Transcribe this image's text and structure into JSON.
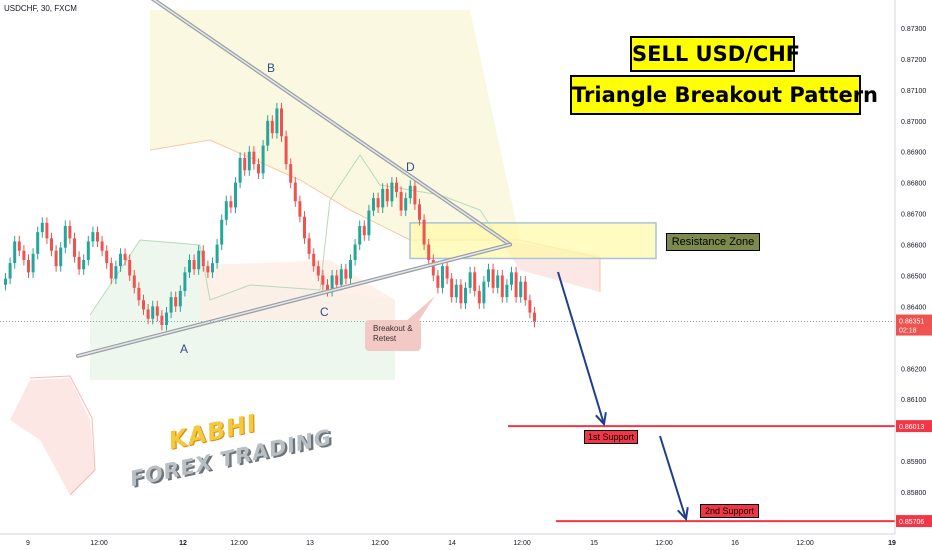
{
  "symbol_label": "USDCHF, 30, FXCM",
  "headline": {
    "line1": "SELL USD/CHF",
    "line2": "Triangle Breakout Pattern"
  },
  "resistance_zone_label": "Resistance Zone",
  "callout": {
    "line1": "Breakout &",
    "line2": "Retest"
  },
  "point_labels": {
    "a": "A",
    "b": "B",
    "c": "C",
    "d": "D"
  },
  "supports": [
    {
      "label": "1st Support",
      "price": 0.86013
    },
    {
      "label": "2nd Support",
      "price": 0.85706
    }
  ],
  "watermark": {
    "line1": "KABHI",
    "line2": "FOREX TRADING"
  },
  "colors": {
    "up": "#26a69a",
    "down": "#ef5350",
    "support": "#f23645",
    "arrow": "#1f3f8c",
    "title_bg": "#ffff00"
  },
  "chart_data": {
    "type": "candlestick",
    "title": "SELL USD/CHF — Triangle Breakout Pattern",
    "symbol": "USDCHF",
    "timeframe": "30",
    "source": "FXCM",
    "ylim": [
      0.8566,
      0.8738
    ],
    "x_tick_labels": [
      "9",
      "12:00",
      "12",
      "12:00",
      "13",
      "12:00",
      "14",
      "12:00",
      "15",
      "12:00",
      "16",
      "12:00",
      "19"
    ],
    "y_tick_labels": [
      "0.87300",
      "0.87200",
      "0.87100",
      "0.87000",
      "0.86900",
      "0.86800",
      "0.86700",
      "0.86600",
      "0.86500",
      "0.86400",
      "0.86200",
      "0.86100",
      "0.85900",
      "0.85800"
    ],
    "current_price": {
      "price": 0.86351,
      "label": "0.86351",
      "countdown": "02:18"
    },
    "close_series": [
      0.8649,
      0.8654,
      0.8661,
      0.8658,
      0.8655,
      0.8651,
      0.8657,
      0.8664,
      0.8667,
      0.8662,
      0.8658,
      0.8653,
      0.8659,
      0.8666,
      0.8662,
      0.8656,
      0.8652,
      0.8655,
      0.8661,
      0.8664,
      0.8661,
      0.8658,
      0.8654,
      0.8649,
      0.8653,
      0.8657,
      0.8655,
      0.865,
      0.8646,
      0.8642,
      0.8639,
      0.8636,
      0.864,
      0.8637,
      0.8634,
      0.8638,
      0.8643,
      0.864,
      0.8645,
      0.8651,
      0.8655,
      0.8652,
      0.8658,
      0.8653,
      0.8651,
      0.8654,
      0.866,
      0.8668,
      0.8674,
      0.8672,
      0.868,
      0.8688,
      0.8684,
      0.869,
      0.8686,
      0.8683,
      0.8692,
      0.87,
      0.8696,
      0.8704,
      0.8695,
      0.8686,
      0.868,
      0.8674,
      0.8669,
      0.8662,
      0.8657,
      0.8653,
      0.865,
      0.8647,
      0.8645,
      0.865,
      0.8647,
      0.8652,
      0.8649,
      0.8655,
      0.866,
      0.8666,
      0.8663,
      0.8671,
      0.8675,
      0.8672,
      0.8678,
      0.8674,
      0.868,
      0.8677,
      0.8671,
      0.8675,
      0.8679,
      0.8673,
      0.8668,
      0.866,
      0.8655,
      0.865,
      0.8646,
      0.8653,
      0.8649,
      0.8643,
      0.8647,
      0.8641,
      0.8646,
      0.8651,
      0.8645,
      0.8641,
      0.8648,
      0.8652,
      0.8646,
      0.865,
      0.8643,
      0.8647,
      0.8651,
      0.8643,
      0.8648,
      0.8642,
      0.8638,
      0.8635
    ],
    "series": [
      {
        "name": "Triangle upper trendline",
        "points": [
          [
            0.874,
            0.874
          ],
          [
            0.866,
            0.866
          ]
        ]
      },
      {
        "name": "Triangle lower trendline",
        "points": [
          [
            0.8624,
            0.8624
          ],
          [
            0.866,
            0.866
          ]
        ]
      }
    ],
    "resistance_zone": [
      0.86555,
      0.8667
    ],
    "annotations": [
      "A",
      "B",
      "C",
      "D",
      "Breakout & Retest",
      "Resistance Zone",
      "1st Support",
      "2nd Support"
    ]
  }
}
